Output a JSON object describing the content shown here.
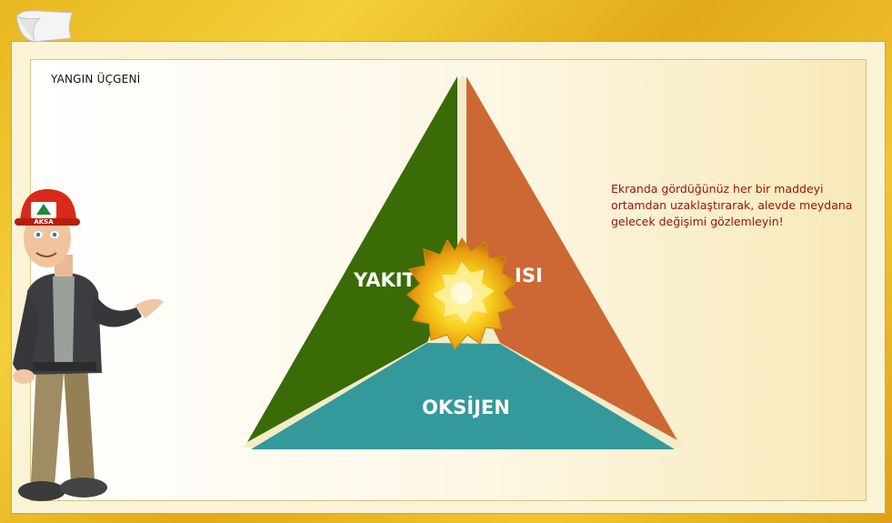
{
  "title": "YANGIN ÜÇGENİ",
  "instruction": "Ekranda gördüğünüz her bir maddeyi ortamdan uzaklaştırarak, alevde meydana gelecek değişimi gözlemleyin!",
  "triangle": {
    "fuel_label": "YAKIT",
    "heat_label": "ISI",
    "oxygen_label": "OKSİJEN",
    "colors": {
      "fuel": "#3a6b06",
      "heat": "#cd6834",
      "oxygen": "#34999a",
      "flame": "#f7c21c"
    }
  },
  "character": {
    "helmet_text": "AKSA"
  }
}
